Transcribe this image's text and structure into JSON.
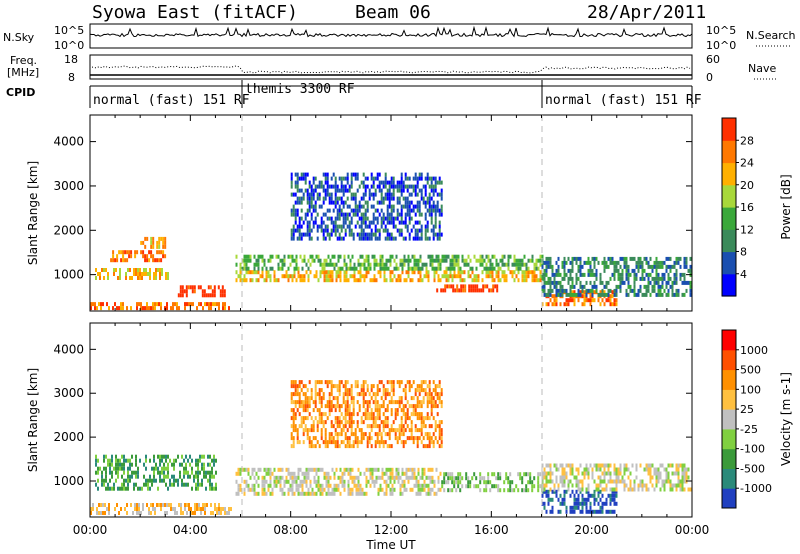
{
  "header": {
    "station": "Syowa East (fitACF)",
    "beam": "Beam 06",
    "date": "28/Apr/2011"
  },
  "top_panels": {
    "nsky_label": "N.Sky",
    "nsky_ticks": [
      "10^5",
      "10^0"
    ],
    "nsearch_label": "N.Search",
    "nsearch_ticks": [
      "10^5",
      "10^0"
    ],
    "freq_label_line1": "Freq.",
    "freq_label_line2": "[MHz]",
    "freq_ticks": [
      "18",
      "8"
    ],
    "nave_label": "Nave",
    "nave_ticks": [
      "60",
      "0"
    ],
    "cpid_label": "CPID"
  },
  "cpid_modes": [
    {
      "label": "normal (fast) 151 RF",
      "start_hour": 0,
      "end_hour": 6
    },
    {
      "label": "themis 3300 RF",
      "start_hour": 6,
      "end_hour": 18
    },
    {
      "label": "normal (fast) 151 RF",
      "start_hour": 18,
      "end_hour": 24
    }
  ],
  "chart_data": [
    {
      "type": "heatmap",
      "quantity": "power",
      "ylabel": "Slant Range [km]",
      "xlabel": "Time UT",
      "xlim_hours": [
        0,
        24
      ],
      "ylim": [
        180,
        4600
      ],
      "y_ticks": [
        1000,
        2000,
        3000,
        4000
      ],
      "x_tick_labels": [
        "00:00",
        "04:00",
        "08:00",
        "12:00",
        "16:00",
        "20:00",
        "00:00"
      ],
      "colorbar": {
        "label": "Power [dB]",
        "tick_labels": [
          "4",
          "8",
          "12",
          "16",
          "20",
          "24",
          "28"
        ],
        "colors": [
          "#0000ff",
          "#1a4fb0",
          "#3a8a5a",
          "#3aa83a",
          "#a8d83a",
          "#ffb000",
          "#ff7800",
          "#ff3000"
        ]
      },
      "regions": [
        {
          "t0": 0.0,
          "t1": 5.6,
          "r0": 280,
          "r1": 380,
          "level": 6
        },
        {
          "t0": 3.5,
          "t1": 5.4,
          "r0": 520,
          "r1": 760,
          "level": 7
        },
        {
          "t0": 0.2,
          "t1": 3.2,
          "r0": 950,
          "r1": 1150,
          "level": 5
        },
        {
          "t0": 0.8,
          "t1": 3.0,
          "r0": 1300,
          "r1": 1550,
          "level": 6
        },
        {
          "t0": 2.0,
          "t1": 3.0,
          "r0": 1650,
          "r1": 1850,
          "level": 5
        },
        {
          "t0": 5.8,
          "t1": 18.0,
          "r0": 900,
          "r1": 1100,
          "level": 5
        },
        {
          "t0": 5.8,
          "t1": 18.0,
          "r0": 1150,
          "r1": 1450,
          "level": 3
        },
        {
          "t0": 13.8,
          "t1": 16.3,
          "r0": 600,
          "r1": 780,
          "level": 7
        },
        {
          "t0": 18.0,
          "t1": 21.0,
          "r0": 300,
          "r1": 650,
          "level": 6
        },
        {
          "t0": 18.0,
          "t1": 24.0,
          "r0": 500,
          "r1": 1400,
          "level": 2
        },
        {
          "t0": 8.0,
          "t1": 14.0,
          "r0": 1800,
          "r1": 3300,
          "level": 1
        }
      ]
    },
    {
      "type": "heatmap",
      "quantity": "velocity",
      "ylabel": "Slant Range [km]",
      "xlabel": "Time UT",
      "xlim_hours": [
        0,
        24
      ],
      "ylim": [
        180,
        4600
      ],
      "y_ticks": [
        1000,
        2000,
        3000,
        4000
      ],
      "x_tick_labels": [
        "00:00",
        "04:00",
        "08:00",
        "12:00",
        "16:00",
        "20:00",
        "00:00"
      ],
      "colorbar": {
        "label": "Velocity [m s-1]",
        "tick_labels": [
          "1000",
          "500",
          "100",
          "25",
          "-25",
          "-100",
          "-500",
          "-1000"
        ],
        "colors": [
          "#2040c0",
          "#2a8a7a",
          "#3a9a3a",
          "#80d040",
          "#c0c0c0",
          "#ffc040",
          "#ff9000",
          "#ff5000",
          "#ff0000"
        ]
      },
      "regions": [
        {
          "t0": 0.0,
          "t1": 5.6,
          "r0": 280,
          "r1": 500,
          "level": 5
        },
        {
          "t0": 0.2,
          "t1": 5.0,
          "r0": 800,
          "r1": 1600,
          "level": 2
        },
        {
          "t0": 5.8,
          "t1": 14.0,
          "r0": 700,
          "r1": 1300,
          "level": 4
        },
        {
          "t0": 14.0,
          "t1": 18.0,
          "r0": 800,
          "r1": 1200,
          "level": 3
        },
        {
          "t0": 18.0,
          "t1": 21.0,
          "r0": 300,
          "r1": 800,
          "level": 0
        },
        {
          "t0": 18.0,
          "t1": 24.0,
          "r0": 800,
          "r1": 1400,
          "level": 4
        },
        {
          "t0": 8.0,
          "t1": 14.0,
          "r0": 1800,
          "r1": 3300,
          "level": 6
        }
      ]
    }
  ]
}
